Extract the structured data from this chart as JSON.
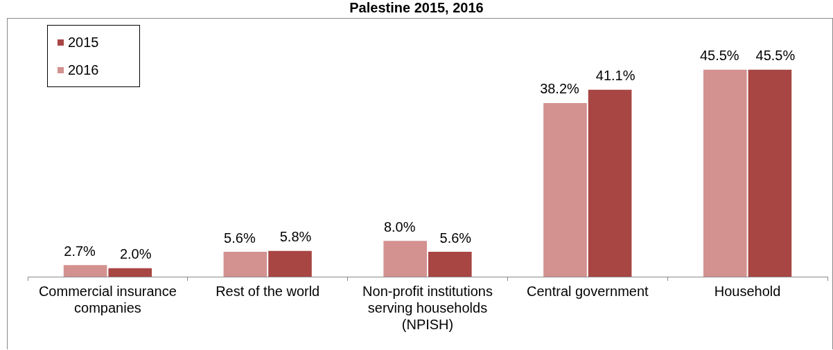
{
  "chart_data": {
    "type": "bar",
    "title": "Palestine 2015, 2016",
    "categories": [
      "Commercial insurance companies",
      "Rest of the world",
      "Non-profit institutions serving households (NPISH)",
      "Central government",
      "Household"
    ],
    "series": [
      {
        "name": "2016",
        "color": "#d39290",
        "values": [
          2.7,
          5.6,
          8.0,
          38.2,
          45.5
        ],
        "value_labels": [
          "2.7%",
          "5.6%",
          "8.0%",
          "38.2%",
          "45.5%"
        ]
      },
      {
        "name": "2015",
        "color": "#a84644",
        "values": [
          2.0,
          5.8,
          5.6,
          41.1,
          45.5
        ],
        "value_labels": [
          "2.0%",
          "5.8%",
          "5.6%",
          "41.1%",
          "45.5%"
        ]
      }
    ],
    "legend": "top left",
    "tick_labels": "x"
  }
}
